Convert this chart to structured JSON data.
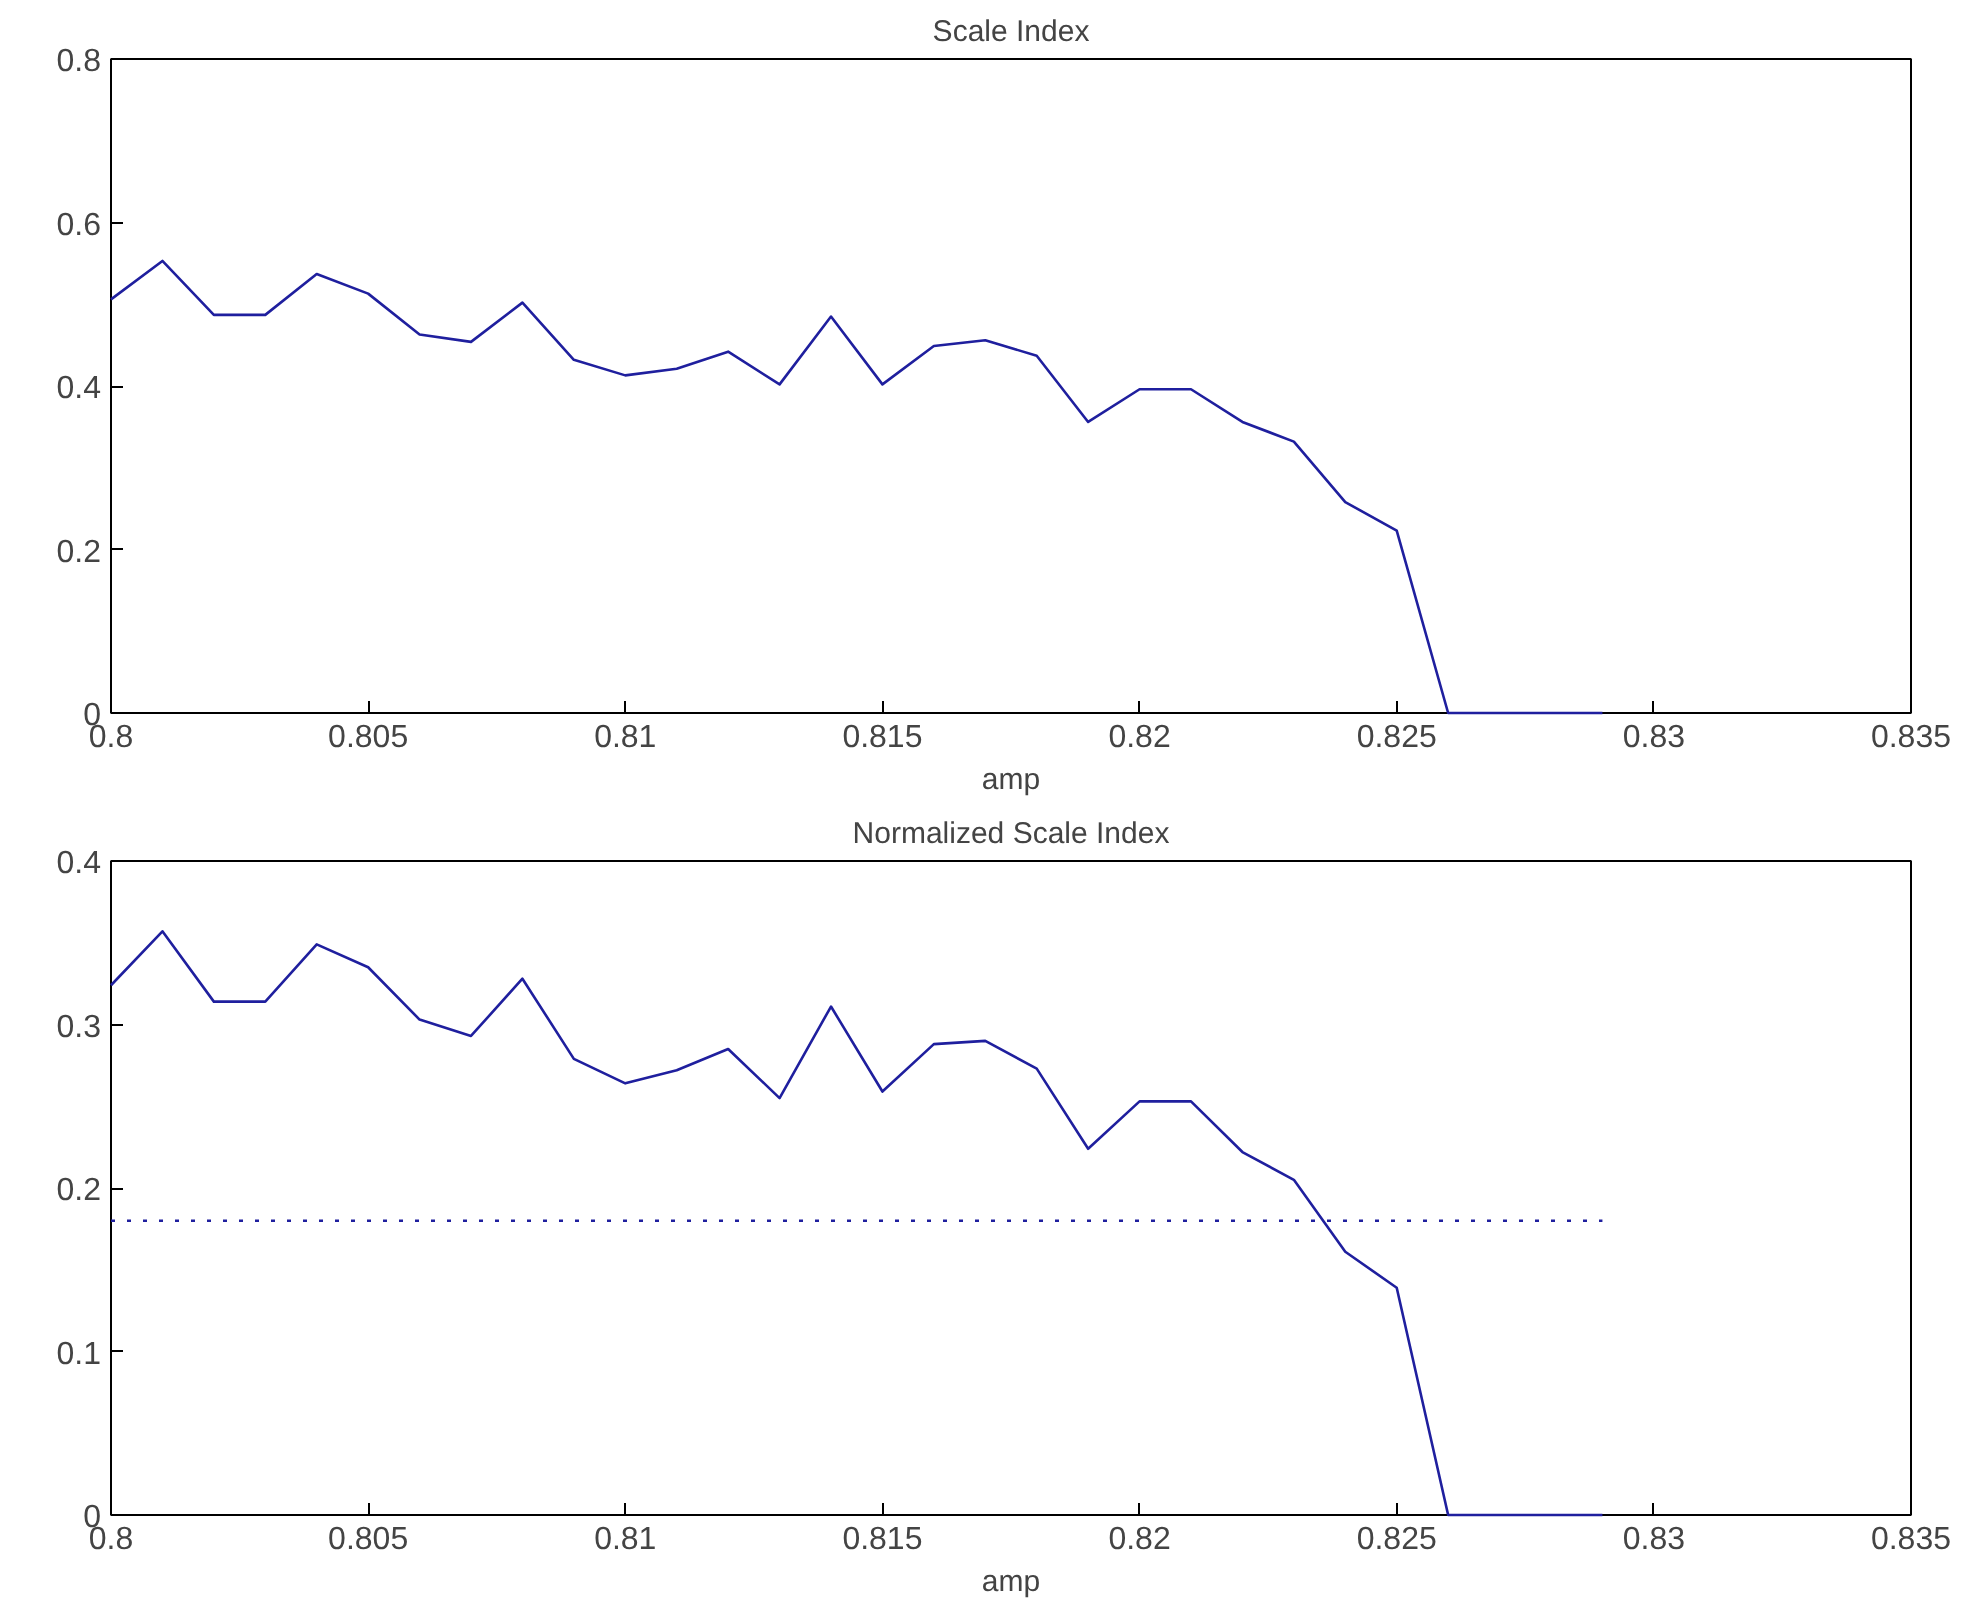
{
  "chart_data": [
    {
      "type": "line",
      "title": "Scale Index",
      "xlabel": "amp",
      "x": [
        0.8,
        0.801,
        0.802,
        0.803,
        0.804,
        0.805,
        0.806,
        0.807,
        0.808,
        0.809,
        0.81,
        0.811,
        0.812,
        0.813,
        0.814,
        0.815,
        0.816,
        0.817,
        0.818,
        0.819,
        0.82,
        0.821,
        0.822,
        0.823,
        0.824,
        0.825,
        0.826,
        0.827,
        0.828,
        0.829
      ],
      "series": [
        {
          "color": "#1f1f9e",
          "line_style": "solid",
          "values": [
            0.506,
            0.553,
            0.487,
            0.487,
            0.537,
            0.513,
            0.463,
            0.454,
            0.502,
            0.432,
            0.413,
            0.421,
            0.442,
            0.402,
            0.485,
            0.402,
            0.449,
            0.456,
            0.437,
            0.356,
            0.396,
            0.396,
            0.356,
            0.332,
            0.258,
            0.223,
            0,
            0,
            0,
            0
          ]
        }
      ],
      "xlim": [
        0.8,
        0.835
      ],
      "xticks": [
        {
          "value": 0.8,
          "label": "0.8"
        },
        0.805,
        0.81,
        0.815,
        0.82,
        0.825,
        0.83,
        0.835
      ],
      "ylim": [
        0,
        0.8
      ],
      "yticks": [
        0,
        0.2,
        0.4,
        0.6,
        0.8
      ],
      "grid": false
    },
    {
      "type": "line",
      "title": "Normalized Scale Index",
      "xlabel": "amp",
      "x": [
        0.8,
        0.801,
        0.802,
        0.803,
        0.804,
        0.805,
        0.806,
        0.807,
        0.808,
        0.809,
        0.81,
        0.811,
        0.812,
        0.813,
        0.814,
        0.815,
        0.816,
        0.817,
        0.818,
        0.819,
        0.82,
        0.821,
        0.822,
        0.823,
        0.824,
        0.825,
        0.826,
        0.827,
        0.828,
        0.829
      ],
      "series": [
        {
          "color": "#1f1f9e",
          "line_style": "solid",
          "values": [
            0.324,
            0.357,
            0.314,
            0.314,
            0.349,
            0.335,
            0.303,
            0.293,
            0.328,
            0.279,
            0.264,
            0.272,
            0.285,
            0.255,
            0.311,
            0.259,
            0.288,
            0.29,
            0.273,
            0.224,
            0.253,
            0.253,
            0.222,
            0.205,
            0.161,
            0.139,
            0,
            0,
            0,
            0
          ]
        },
        {
          "color": "#1f1f9e",
          "line_style": "dotted",
          "x": [
            0.8,
            0.829
          ],
          "values": [
            0.18,
            0.18
          ]
        }
      ],
      "xlim": [
        0.8,
        0.835
      ],
      "xticks": [
        {
          "value": 0.8,
          "label": "0.8"
        },
        0.805,
        0.81,
        0.815,
        0.82,
        0.825,
        0.83,
        0.835
      ],
      "ylim": [
        0,
        0.4
      ],
      "yticks": [
        0,
        0.1,
        0.2,
        0.3,
        0.4
      ],
      "grid": false
    }
  ]
}
